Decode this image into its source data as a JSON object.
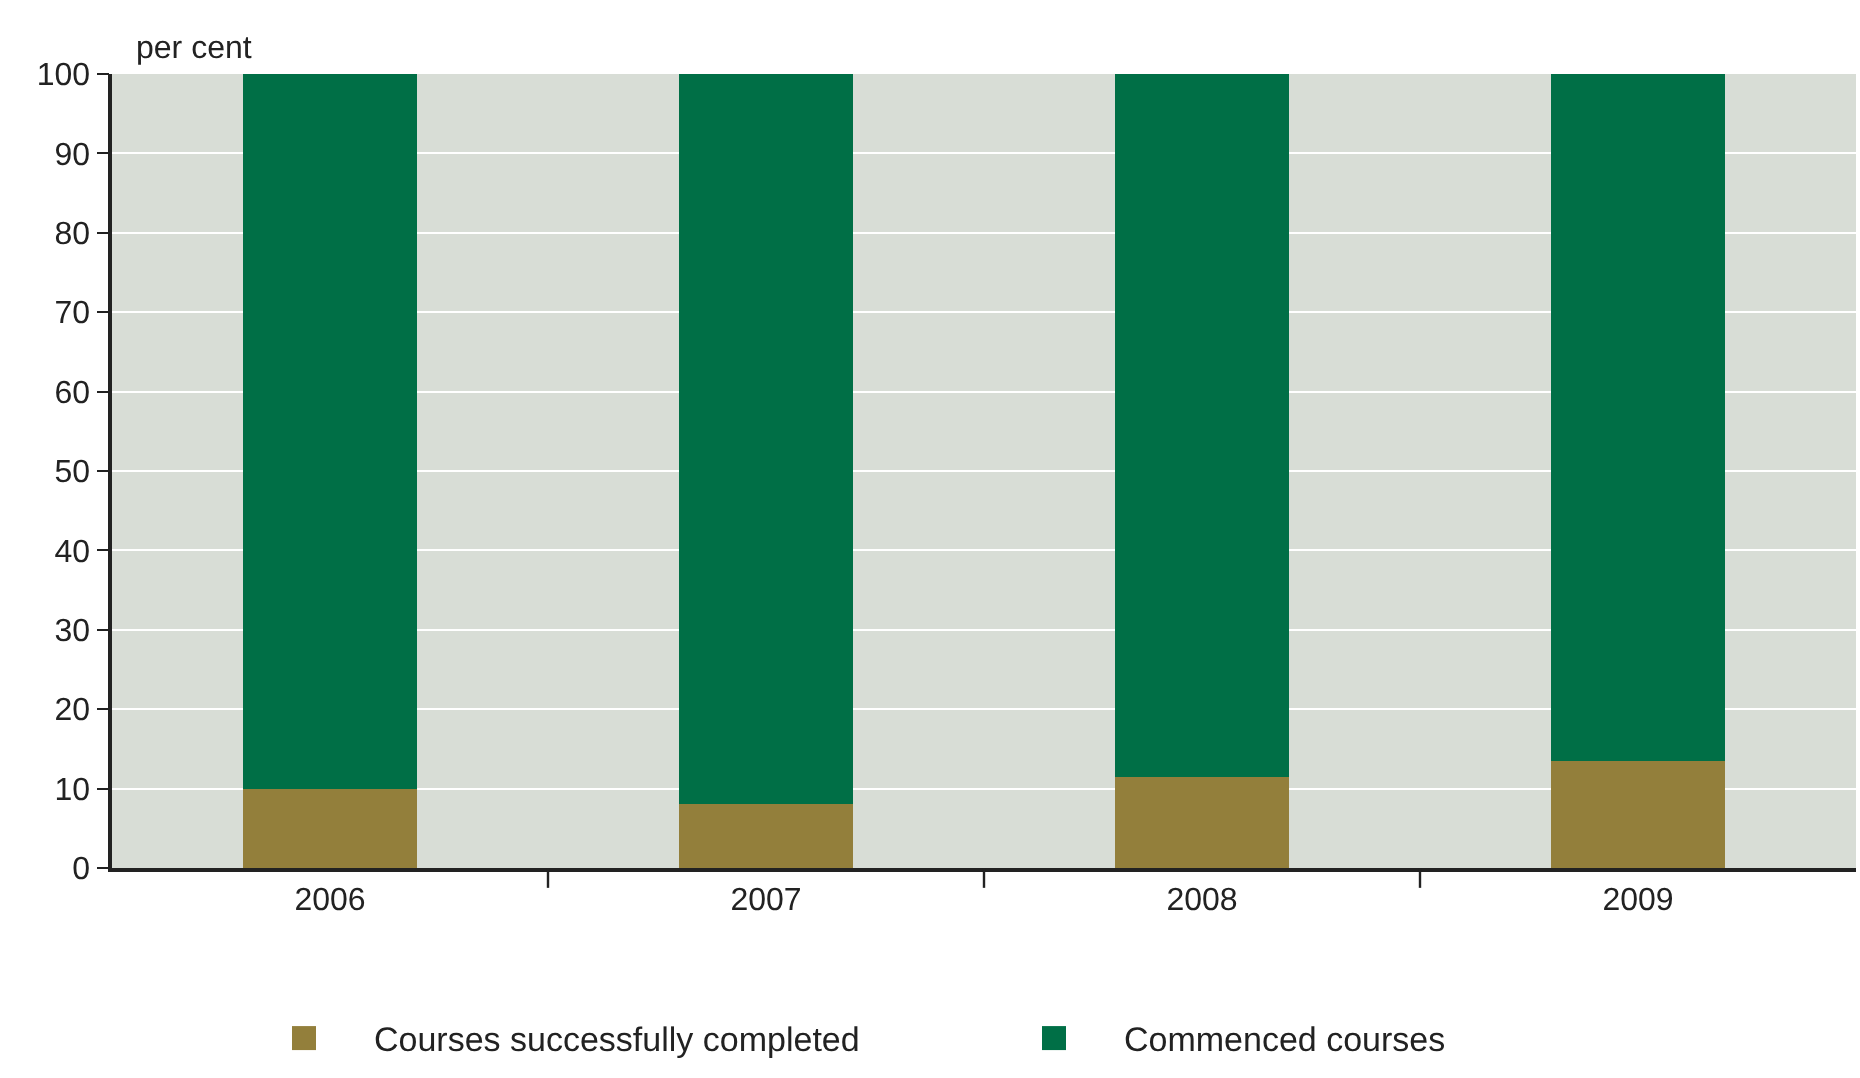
{
  "chart_data": {
    "type": "bar",
    "ylabel": "per cent",
    "categories": [
      "2006",
      "2007",
      "2008",
      "2009"
    ],
    "stacked": true,
    "series": [
      {
        "name": "Courses successfully completed",
        "color": "#937f3b",
        "values": [
          10,
          8,
          11.5,
          13.5
        ]
      },
      {
        "name": "Commenced courses",
        "color": "#006f46",
        "values": [
          90,
          92,
          88.5,
          86.5
        ]
      }
    ],
    "ylim": [
      0,
      100
    ],
    "yticks": [
      0,
      10,
      20,
      30,
      40,
      50,
      60,
      70,
      80,
      90,
      100
    ],
    "grid": "y",
    "legend": "bottom"
  }
}
